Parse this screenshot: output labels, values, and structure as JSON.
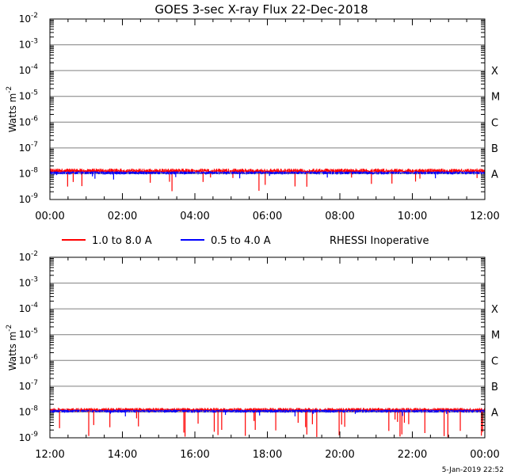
{
  "title": "GOES 3-sec X-ray Flux   22-Dec-2018",
  "footer_timestamp": "5-Jan-2019 22:52",
  "legend": {
    "long": {
      "label": "1.0 to 8.0 A",
      "color": "#ff0000"
    },
    "short": {
      "label": "0.5 to 4.0 A",
      "color": "#0000ff"
    },
    "note": "RHESSI Inoperative"
  },
  "chart_data": [
    {
      "type": "line",
      "ylabel_base": "Watts m",
      "ylabel_exp": "-2",
      "yscale": "log",
      "ylim_exp": [
        -9,
        -2
      ],
      "yticks": [
        {
          "base": "10",
          "exp": "-2",
          "value": -2
        },
        {
          "base": "10",
          "exp": "-3",
          "value": -3
        },
        {
          "base": "10",
          "exp": "-4",
          "value": -4
        },
        {
          "base": "10",
          "exp": "-5",
          "value": -5
        },
        {
          "base": "10",
          "exp": "-6",
          "value": -6
        },
        {
          "base": "10",
          "exp": "-7",
          "value": -7
        },
        {
          "base": "10",
          "exp": "-8",
          "value": -8
        },
        {
          "base": "10",
          "exp": "-9",
          "value": -9
        }
      ],
      "gridlines_exp": [
        -3,
        -4,
        -5,
        -6,
        -7,
        -8
      ],
      "classes": [
        {
          "label": "X",
          "value": -4
        },
        {
          "label": "M",
          "value": -5
        },
        {
          "label": "C",
          "value": -6
        },
        {
          "label": "B",
          "value": -7
        },
        {
          "label": "A",
          "value": -8
        }
      ],
      "xlim_hours": [
        0,
        12
      ],
      "xticks": [
        {
          "label": "00:00",
          "hour": 0
        },
        {
          "label": "02:00",
          "hour": 2
        },
        {
          "label": "04:00",
          "hour": 4
        },
        {
          "label": "06:00",
          "hour": 6
        },
        {
          "label": "08:00",
          "hour": 8
        },
        {
          "label": "10:00",
          "hour": 10
        },
        {
          "label": "12:00",
          "hour": 12
        }
      ],
      "series": [
        {
          "key": "long",
          "level": -7.9,
          "upper_noise": 0.1,
          "dip_min": -8.7,
          "dip_rate": 0.02
        },
        {
          "key": "short",
          "level": -7.95,
          "upper_noise": 0.04,
          "dip_min": -8.25,
          "dip_rate": 0.01
        }
      ]
    },
    {
      "type": "line",
      "ylabel_base": "Watts m",
      "ylabel_exp": "-2",
      "yscale": "log",
      "ylim_exp": [
        -9,
        -2
      ],
      "yticks": [
        {
          "base": "10",
          "exp": "-2",
          "value": -2
        },
        {
          "base": "10",
          "exp": "-3",
          "value": -3
        },
        {
          "base": "10",
          "exp": "-4",
          "value": -4
        },
        {
          "base": "10",
          "exp": "-5",
          "value": -5
        },
        {
          "base": "10",
          "exp": "-6",
          "value": -6
        },
        {
          "base": "10",
          "exp": "-7",
          "value": -7
        },
        {
          "base": "10",
          "exp": "-8",
          "value": -8
        },
        {
          "base": "10",
          "exp": "-9",
          "value": -9
        }
      ],
      "gridlines_exp": [
        -3,
        -4,
        -5,
        -6,
        -7,
        -8
      ],
      "classes": [
        {
          "label": "X",
          "value": -4
        },
        {
          "label": "M",
          "value": -5
        },
        {
          "label": "C",
          "value": -6
        },
        {
          "label": "B",
          "value": -7
        },
        {
          "label": "A",
          "value": -8
        }
      ],
      "xlim_hours": [
        12,
        24
      ],
      "xticks": [
        {
          "label": "12:00",
          "hour": 12
        },
        {
          "label": "14:00",
          "hour": 14
        },
        {
          "label": "16:00",
          "hour": 16
        },
        {
          "label": "18:00",
          "hour": 18
        },
        {
          "label": "20:00",
          "hour": 20
        },
        {
          "label": "22:00",
          "hour": 22
        },
        {
          "label": "00:00",
          "hour": 24
        }
      ],
      "series": [
        {
          "key": "long",
          "level": -7.92,
          "upper_noise": 0.08,
          "dip_min": -9.0,
          "dip_rate": 0.04
        },
        {
          "key": "short",
          "level": -7.95,
          "upper_noise": 0.04,
          "dip_min": -8.2,
          "dip_rate": 0.01
        }
      ]
    }
  ]
}
